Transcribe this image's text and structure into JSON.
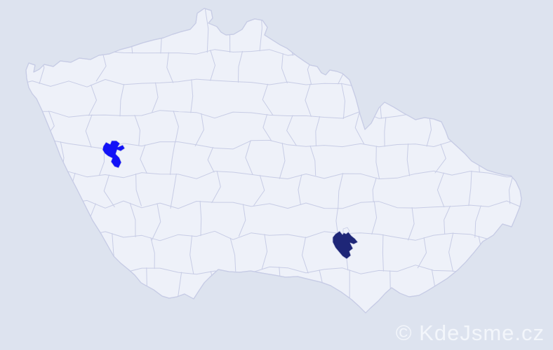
{
  "watermark": {
    "text": "© KdeJsme.cz"
  },
  "colors": {
    "sea": "#dde3ef",
    "land": "#eef1f9",
    "border": "#c7cce5",
    "highlight_primary": "#1212f7",
    "highlight_dark": "#1e2677",
    "watermark": "#f3f6fb"
  },
  "map": {
    "description": "District (okres) map of the Czech Republic with two highlighted districts",
    "highlighted_districts": [
      {
        "id": "district-west",
        "color": "#1212f7"
      },
      {
        "id": "district-southeast",
        "color": "#1e2677"
      }
    ]
  }
}
